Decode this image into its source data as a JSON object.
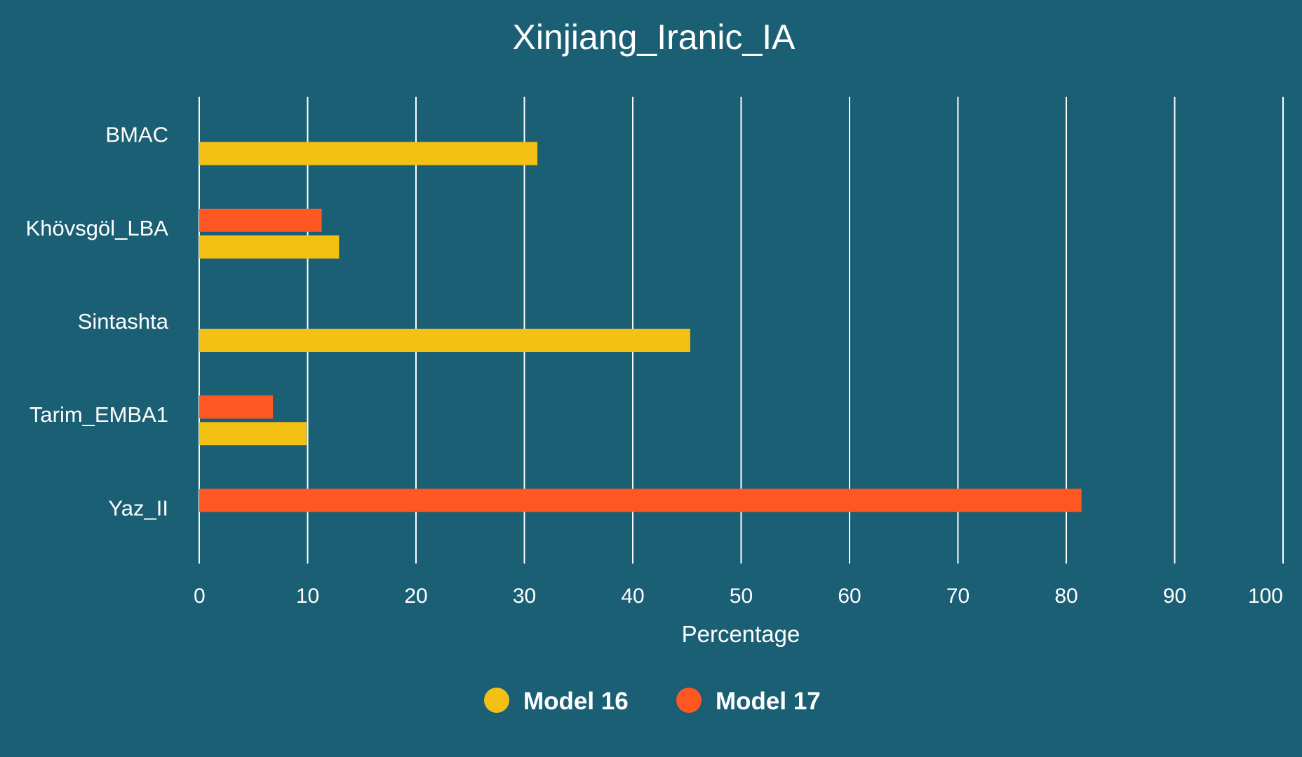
{
  "chart_data": {
    "type": "bar",
    "orientation": "horizontal",
    "title": "Xinjiang_Iranic_IA",
    "xlabel": "Percentage",
    "ylabel": "",
    "xlim": [
      0,
      100
    ],
    "x_ticks": [
      0,
      10,
      20,
      30,
      40,
      50,
      60,
      70,
      80,
      90,
      100
    ],
    "grid": true,
    "legend_position": "bottom-center",
    "categories": [
      "BMAC",
      "Khövsgöl_LBA",
      "Sintashta",
      "Tarim_EMBA1",
      "Yaz_II"
    ],
    "series": [
      {
        "name": "Model 16",
        "color": "#f2c114",
        "values": [
          31.2,
          12.9,
          45.3,
          9.9,
          null
        ]
      },
      {
        "name": "Model 17",
        "color": "#ff5722",
        "values": [
          null,
          11.3,
          null,
          6.8,
          81.4
        ]
      }
    ]
  }
}
